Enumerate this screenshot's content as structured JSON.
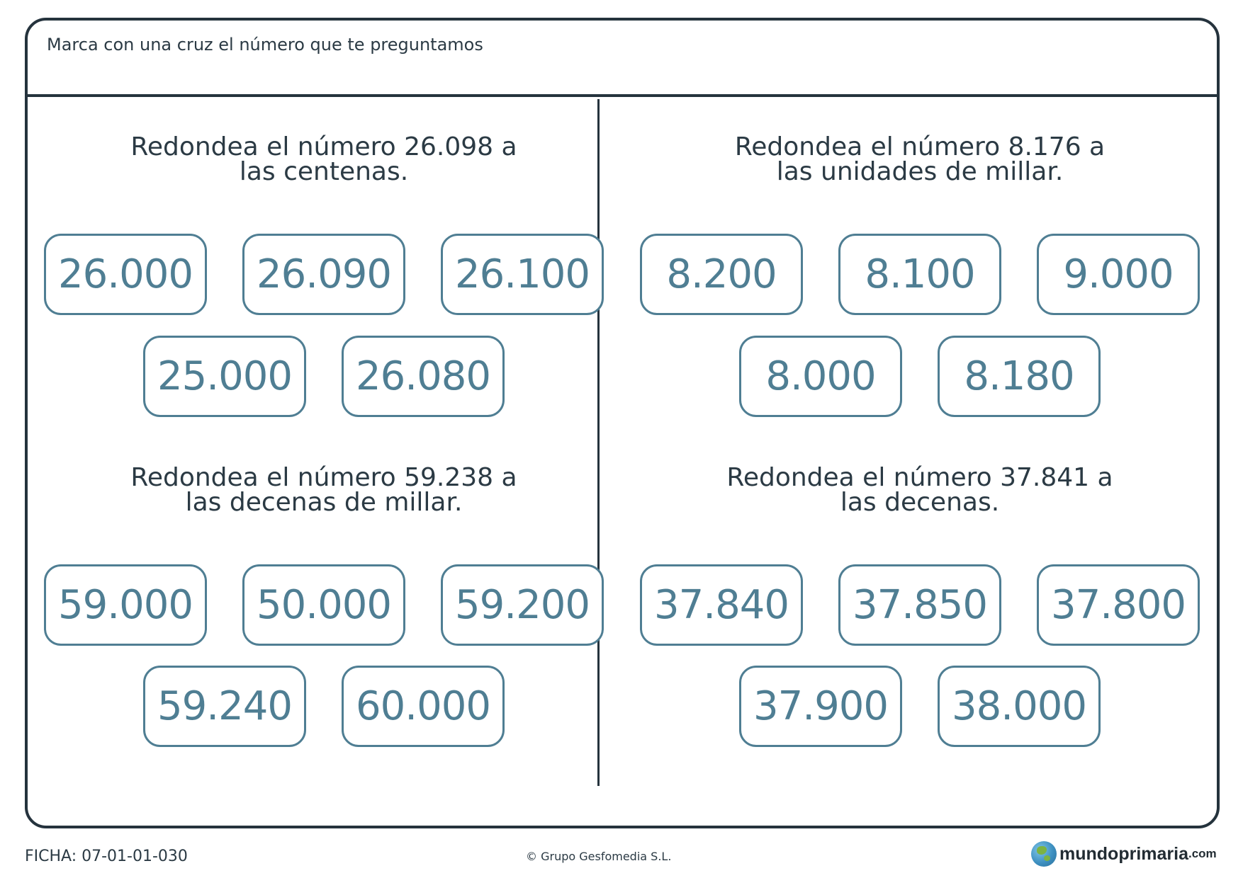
{
  "header": {
    "instruction": "Marca con una cruz el número que te preguntamos"
  },
  "exercises": [
    {
      "question_line1": "Redondea el número 26.098 a",
      "question_line2": "las centenas.",
      "options": [
        "26.000",
        "26.090",
        "26.100",
        "25.000",
        "26.080"
      ]
    },
    {
      "question_line1": "Redondea el número 8.176 a",
      "question_line2": "las unidades de millar.",
      "options": [
        "8.200",
        "8.100",
        "9.000",
        "8.000",
        "8.180"
      ]
    },
    {
      "question_line1": "Redondea el número 59.238 a",
      "question_line2": "las decenas de millar.",
      "options": [
        "59.000",
        "50.000",
        "59.200",
        "59.240",
        "60.000"
      ]
    },
    {
      "question_line1": "Redondea el número 37.841 a",
      "question_line2": "las decenas.",
      "options": [
        "37.840",
        "37.850",
        "37.800",
        "37.900",
        "38.000"
      ]
    }
  ],
  "footer": {
    "ficha": "FICHA: 07-01-01-030",
    "copyright": "© Grupo Gesfomedia S.L.",
    "brand_name": "mundoprimaria",
    "brand_tld": ".com",
    "logo_icon": "globe-icon"
  },
  "colors": {
    "frame": "#25333d",
    "option_border": "#4f7e93",
    "option_text": "#4f7e93",
    "text": "#2b3a44"
  }
}
